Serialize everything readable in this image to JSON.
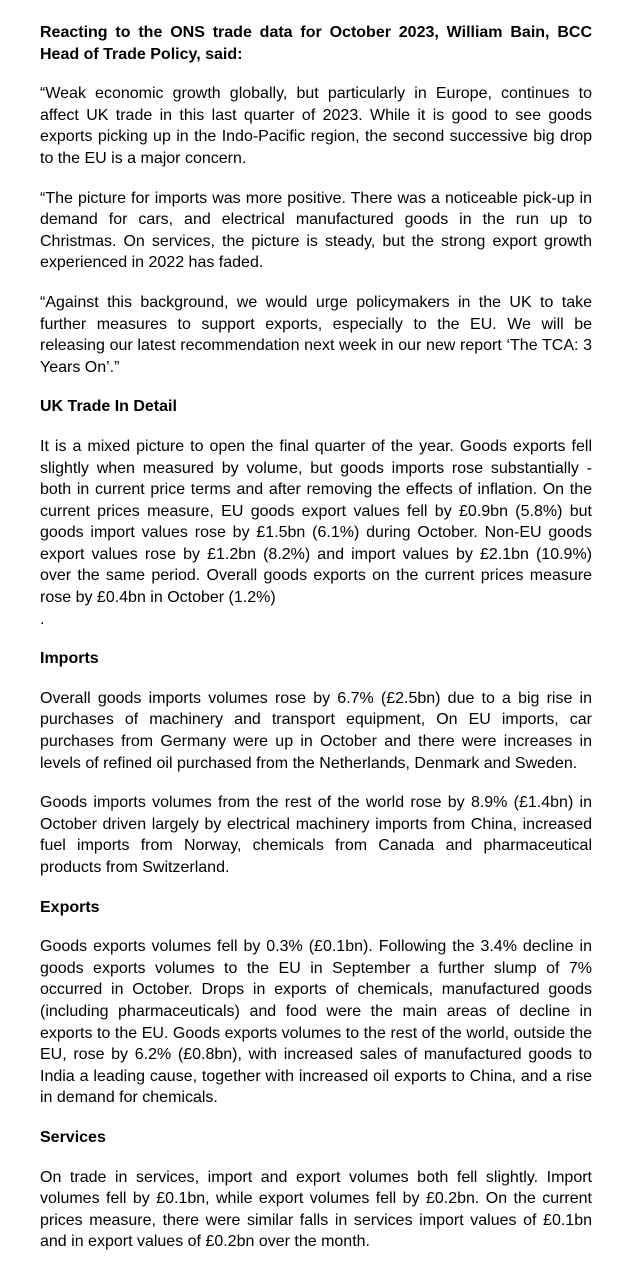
{
  "intro": "Reacting to the ONS trade data for October 2023, William Bain, BCC Head of Trade Policy, said:",
  "quote": [
    "“Weak economic growth globally, but particularly in Europe, continues to affect UK trade in this last quarter of 2023. While it is good to see goods exports picking up in the Indo-Pacific region, the second successive big drop to the EU is a major concern.",
    "“The picture for imports was more positive. There was a noticeable pick-up in demand for cars, and electrical manufactured goods in the run up to Christmas. On services, the picture is steady, but the strong export growth experienced in 2022 has faded.",
    "“Against this background, we would urge policymakers in the UK to take further measures to support exports, especially to the EU. We will be releasing our latest recommendation next week in our new report ‘The TCA: 3 Years On’.”"
  ],
  "sections": {
    "detail": {
      "heading": "UK Trade In Detail",
      "paras": [
        "It is a mixed picture to open the final quarter of the year. Goods exports fell slightly when measured by volume, but goods imports rose substantially - both in current price terms and after removing the effects of inflation. On the current prices measure, EU goods export values fell by £0.9bn (5.8%) but goods import values rose by £1.5bn (6.1%) during October. Non-EU goods export values rose by £1.2bn (8.2%) and import values by £2.1bn (10.9%) over the same period. Overall goods exports on the current prices measure rose by £0.4bn in October (1.2%)",
        "."
      ]
    },
    "imports": {
      "heading": "Imports",
      "paras": [
        "Overall goods imports volumes rose by 6.7% (£2.5bn) due to a big rise in purchases of machinery and transport equipment, On EU imports, car purchases from Germany were up in October and there were increases in levels of refined oil purchased from the Netherlands, Denmark and Sweden.",
        "Goods imports volumes from the rest of the world rose by 8.9% (£1.4bn) in October driven largely by electrical machinery imports from China, increased fuel imports from Norway, chemicals from Canada and pharmaceutical products from Switzerland."
      ]
    },
    "exports": {
      "heading": "Exports",
      "paras": [
        "Goods exports volumes fell by 0.3% (£0.1bn). Following the 3.4% decline in goods exports volumes to the EU in September a further slump of 7% occurred in October. Drops in exports of chemicals, manufactured goods (including pharmaceuticals) and food were the main areas of decline in exports to the EU. Goods exports volumes to the rest of the world, outside the EU, rose by 6.2% (£0.8bn), with increased sales of manufactured goods to India a leading cause, together with increased oil exports to China, and a rise in demand for chemicals."
      ]
    },
    "services": {
      "heading": "Services",
      "paras": [
        "On trade in services, import and export volumes both fell slightly. Import volumes fell by £0.1bn, while export volumes fell by £0.2bn. On the current prices measure, there were similar falls in services import values of £0.1bn and in export values of £0.2bn over the month."
      ]
    }
  }
}
